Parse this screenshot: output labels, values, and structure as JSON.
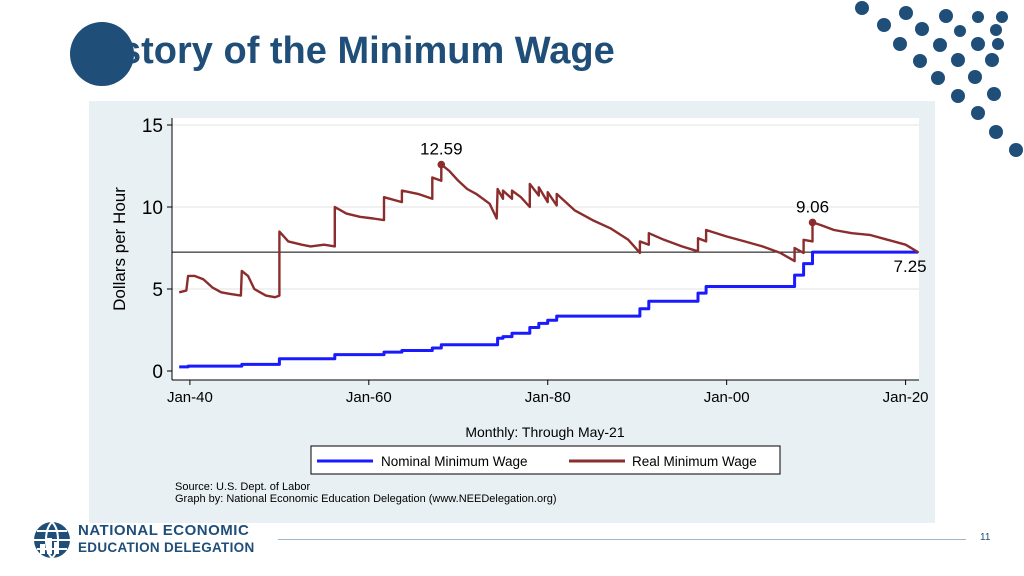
{
  "slide": {
    "title": "History of the Minimum Wage",
    "page_number": "11",
    "accent_color": "#1f4e79"
  },
  "organization": {
    "line1": "NATIONAL ECONOMIC",
    "line2": "EDUCATION DELEGATION",
    "logo_icon": "globe-icon"
  },
  "chart_data": {
    "type": "line",
    "title": "",
    "ylabel": "Dollars per Hour",
    "xlabel": "Monthly: Through May-21",
    "ylim": [
      0,
      15
    ],
    "xlim": [
      1938,
      2021.5
    ],
    "x_ticks": [
      1940,
      1960,
      1980,
      2000,
      2020
    ],
    "x_tick_labels": [
      "Jan-40",
      "Jan-60",
      "Jan-80",
      "Jan-00",
      "Jan-20"
    ],
    "y_ticks": [
      0,
      5,
      10,
      15
    ],
    "y_tick_labels": [
      "0",
      "5",
      "10",
      "15"
    ],
    "reference_line": 7.25,
    "grid": true,
    "legend_position": "bottom",
    "series": [
      {
        "name": "Nominal Minimum Wage",
        "color": "#1a1aff",
        "points": [
          [
            1938.8,
            0.25
          ],
          [
            1939.8,
            0.25
          ],
          [
            1939.8,
            0.3
          ],
          [
            1945.8,
            0.3
          ],
          [
            1945.8,
            0.4
          ],
          [
            1950.0,
            0.4
          ],
          [
            1950.0,
            0.75
          ],
          [
            1956.2,
            0.75
          ],
          [
            1956.2,
            1.0
          ],
          [
            1961.7,
            1.0
          ],
          [
            1961.7,
            1.15
          ],
          [
            1963.7,
            1.15
          ],
          [
            1963.7,
            1.25
          ],
          [
            1967.1,
            1.25
          ],
          [
            1967.1,
            1.4
          ],
          [
            1968.1,
            1.4
          ],
          [
            1968.1,
            1.6
          ],
          [
            1974.4,
            1.6
          ],
          [
            1974.4,
            2.0
          ],
          [
            1975.0,
            2.0
          ],
          [
            1975.0,
            2.1
          ],
          [
            1976.0,
            2.1
          ],
          [
            1976.0,
            2.3
          ],
          [
            1978.0,
            2.3
          ],
          [
            1978.0,
            2.65
          ],
          [
            1979.0,
            2.65
          ],
          [
            1979.0,
            2.9
          ],
          [
            1980.0,
            2.9
          ],
          [
            1980.0,
            3.1
          ],
          [
            1981.0,
            3.1
          ],
          [
            1981.0,
            3.35
          ],
          [
            1990.3,
            3.35
          ],
          [
            1990.3,
            3.8
          ],
          [
            1991.3,
            3.8
          ],
          [
            1991.3,
            4.25
          ],
          [
            1996.8,
            4.25
          ],
          [
            1996.8,
            4.75
          ],
          [
            1997.7,
            4.75
          ],
          [
            1997.7,
            5.15
          ],
          [
            2007.6,
            5.15
          ],
          [
            2007.6,
            5.85
          ],
          [
            2008.6,
            5.85
          ],
          [
            2008.6,
            6.55
          ],
          [
            2009.6,
            6.55
          ],
          [
            2009.6,
            7.25
          ],
          [
            2021.4,
            7.25
          ]
        ]
      },
      {
        "name": "Real Minimum Wage",
        "color": "#8b2d2d",
        "points": [
          [
            1938.8,
            4.8
          ],
          [
            1939.6,
            4.9
          ],
          [
            1939.8,
            5.8
          ],
          [
            1940.5,
            5.8
          ],
          [
            1941.5,
            5.6
          ],
          [
            1942.5,
            5.1
          ],
          [
            1943.5,
            4.8
          ],
          [
            1944.5,
            4.7
          ],
          [
            1945.7,
            4.6
          ],
          [
            1945.8,
            6.1
          ],
          [
            1946.5,
            5.8
          ],
          [
            1947.2,
            5.0
          ],
          [
            1948.5,
            4.6
          ],
          [
            1949.5,
            4.5
          ],
          [
            1950.0,
            4.6
          ],
          [
            1950.0,
            8.5
          ],
          [
            1951.0,
            7.9
          ],
          [
            1952.5,
            7.7
          ],
          [
            1953.5,
            7.6
          ],
          [
            1955.0,
            7.7
          ],
          [
            1956.2,
            7.6
          ],
          [
            1956.2,
            10.0
          ],
          [
            1957.5,
            9.6
          ],
          [
            1959.0,
            9.4
          ],
          [
            1960.5,
            9.3
          ],
          [
            1961.7,
            9.2
          ],
          [
            1961.7,
            10.6
          ],
          [
            1963.7,
            10.3
          ],
          [
            1963.7,
            11.0
          ],
          [
            1965.5,
            10.8
          ],
          [
            1967.1,
            10.5
          ],
          [
            1967.1,
            11.8
          ],
          [
            1968.1,
            11.6
          ],
          [
            1968.1,
            12.59
          ],
          [
            1969.0,
            12.2
          ],
          [
            1970.0,
            11.6
          ],
          [
            1971.0,
            11.1
          ],
          [
            1972.0,
            10.8
          ],
          [
            1973.5,
            10.2
          ],
          [
            1974.3,
            9.3
          ],
          [
            1974.4,
            11.1
          ],
          [
            1975.0,
            10.5
          ],
          [
            1975.0,
            11.0
          ],
          [
            1976.0,
            10.5
          ],
          [
            1976.0,
            11.0
          ],
          [
            1977.0,
            10.6
          ],
          [
            1978.0,
            10.0
          ],
          [
            1978.0,
            11.4
          ],
          [
            1979.0,
            10.7
          ],
          [
            1979.0,
            11.2
          ],
          [
            1980.0,
            10.3
          ],
          [
            1980.0,
            10.9
          ],
          [
            1981.0,
            10.1
          ],
          [
            1981.0,
            10.8
          ],
          [
            1983.0,
            9.8
          ],
          [
            1985.0,
            9.2
          ],
          [
            1987.0,
            8.7
          ],
          [
            1989.0,
            8.0
          ],
          [
            1990.3,
            7.2
          ],
          [
            1990.3,
            7.9
          ],
          [
            1991.3,
            7.7
          ],
          [
            1991.3,
            8.4
          ],
          [
            1993.0,
            8.0
          ],
          [
            1995.0,
            7.6
          ],
          [
            1996.8,
            7.3
          ],
          [
            1996.8,
            8.1
          ],
          [
            1997.7,
            7.9
          ],
          [
            1997.7,
            8.6
          ],
          [
            2000.0,
            8.2
          ],
          [
            2002.0,
            7.9
          ],
          [
            2004.0,
            7.6
          ],
          [
            2006.0,
            7.2
          ],
          [
            2007.6,
            6.7
          ],
          [
            2007.6,
            7.5
          ],
          [
            2008.6,
            7.2
          ],
          [
            2008.6,
            8.0
          ],
          [
            2009.6,
            7.9
          ],
          [
            2009.6,
            9.06
          ],
          [
            2010.5,
            8.9
          ],
          [
            2012.0,
            8.6
          ],
          [
            2014.0,
            8.4
          ],
          [
            2016.0,
            8.3
          ],
          [
            2018.0,
            8.0
          ],
          [
            2020.0,
            7.7
          ],
          [
            2021.4,
            7.25
          ]
        ]
      }
    ],
    "annotations": [
      {
        "text": "12.59",
        "x": 1968.1,
        "y": 12.59,
        "marker": true,
        "label_offset": "above"
      },
      {
        "text": "9.06",
        "x": 2009.6,
        "y": 9.06,
        "marker": true,
        "label_offset": "above"
      },
      {
        "text": "7.25",
        "x": 2021.4,
        "y": 7.25,
        "marker": false,
        "label_offset": "below"
      }
    ],
    "source_lines": [
      "Source: U.S. Dept. of Labor",
      "Graph by: National Economic Education Delegation (www.NEEDelegation.org)"
    ]
  }
}
